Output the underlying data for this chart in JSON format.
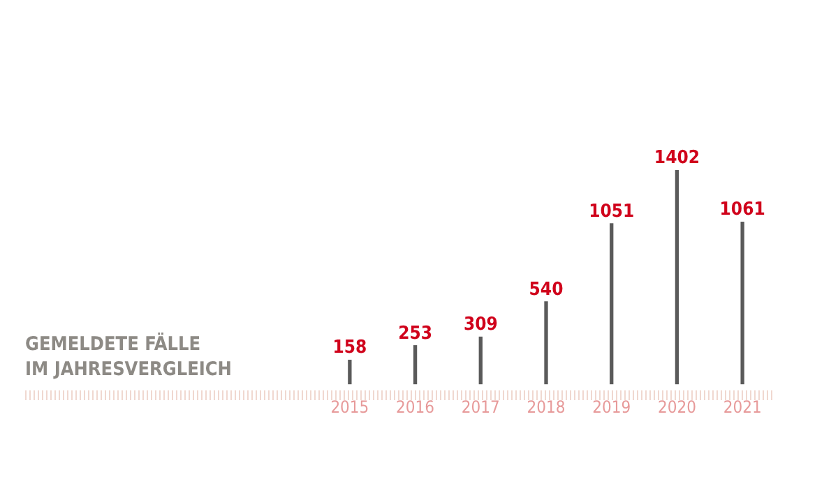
{
  "chart_data": {
    "type": "bar",
    "title": "GEMELDETE FÄLLE\nIM JAHRESVERGLEICH",
    "categories": [
      "2015",
      "2016",
      "2017",
      "2018",
      "2019",
      "2020",
      "2021"
    ],
    "values": [
      158,
      253,
      309,
      540,
      1051,
      1402,
      1061
    ],
    "color": "#5a5a5a",
    "data_labels": true,
    "grid": false,
    "legend": false
  }
}
